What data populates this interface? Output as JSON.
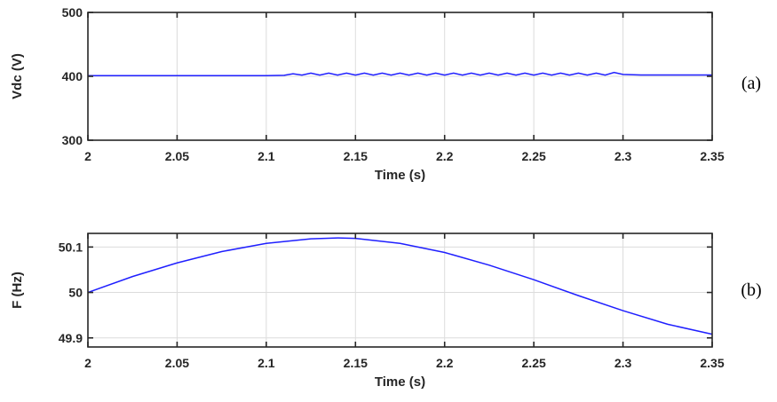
{
  "series_color": "#1f1fff",
  "chart_data": [
    {
      "type": "line",
      "panel_label": "(a)",
      "xlabel": "Time (s)",
      "ylabel": "Vdc (V)",
      "xlim": [
        2,
        2.35
      ],
      "ylim": [
        300,
        500
      ],
      "x_ticks": [
        2,
        2.05,
        2.1,
        2.15,
        2.2,
        2.25,
        2.3,
        2.35
      ],
      "x_tick_labels": [
        "2",
        "2.05",
        "2.1",
        "2.15",
        "2.2",
        "2.25",
        "2.3",
        "2.35"
      ],
      "y_ticks": [
        300,
        400,
        500
      ],
      "y_tick_labels": [
        "300",
        "400",
        "500"
      ],
      "grid": true,
      "series": [
        {
          "x": [
            2.0,
            2.1,
            2.11,
            2.115,
            2.12,
            2.125,
            2.13,
            2.135,
            2.14,
            2.145,
            2.15,
            2.155,
            2.16,
            2.165,
            2.17,
            2.175,
            2.18,
            2.185,
            2.19,
            2.195,
            2.2,
            2.205,
            2.21,
            2.215,
            2.22,
            2.225,
            2.23,
            2.235,
            2.24,
            2.245,
            2.25,
            2.255,
            2.26,
            2.265,
            2.27,
            2.275,
            2.28,
            2.285,
            2.29,
            2.295,
            2.3,
            2.31,
            2.35
          ],
          "y": [
            401,
            401,
            401.5,
            404,
            402,
            405,
            402,
            405,
            402,
            405,
            402,
            405,
            402,
            405,
            402,
            405,
            402,
            405,
            402,
            405,
            402,
            405,
            402,
            405,
            402,
            405,
            402,
            405,
            402,
            405,
            402,
            405,
            402,
            405,
            402,
            405,
            402,
            405,
            402,
            406,
            403,
            402,
            402
          ]
        }
      ]
    },
    {
      "type": "line",
      "panel_label": "(b)",
      "xlabel": "Time (s)",
      "ylabel": "F (Hz)",
      "xlim": [
        2,
        2.35
      ],
      "ylim": [
        49.88,
        50.13
      ],
      "x_ticks": [
        2,
        2.05,
        2.1,
        2.15,
        2.2,
        2.25,
        2.3,
        2.35
      ],
      "x_tick_labels": [
        "2",
        "2.05",
        "2.1",
        "2.15",
        "2.2",
        "2.25",
        "2.3",
        "2.35"
      ],
      "y_ticks": [
        49.9,
        50,
        50.1
      ],
      "y_tick_labels": [
        "49.9",
        "50",
        "50.1"
      ],
      "grid": true,
      "series": [
        {
          "x": [
            2.0,
            2.025,
            2.05,
            2.075,
            2.1,
            2.125,
            2.14,
            2.15,
            2.175,
            2.2,
            2.225,
            2.25,
            2.275,
            2.3,
            2.325,
            2.35
          ],
          "y": [
            50.0,
            50.035,
            50.065,
            50.09,
            50.108,
            50.118,
            50.12,
            50.119,
            50.108,
            50.088,
            50.06,
            50.028,
            49.993,
            49.96,
            49.93,
            49.908
          ]
        }
      ]
    }
  ]
}
